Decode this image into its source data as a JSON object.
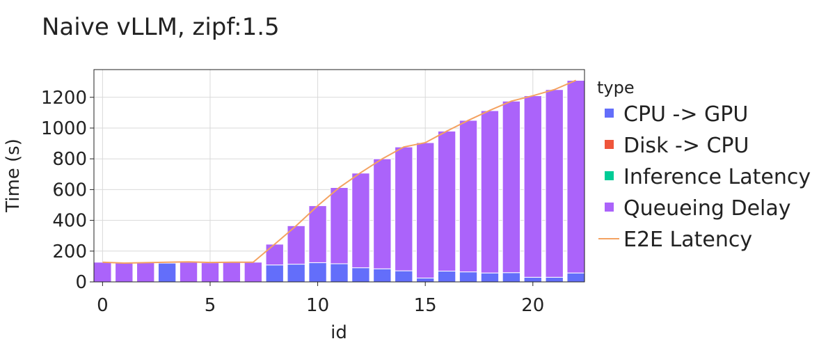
{
  "chart_data": {
    "type": "bar",
    "title": "Naive vLLM, zipf:1.5",
    "xlabel": "id",
    "ylabel": "Time (s)",
    "xlim": [
      -0.4,
      22.4
    ],
    "ylim": [
      0,
      1380
    ],
    "x_ticks": [
      0,
      5,
      10,
      15,
      20
    ],
    "y_ticks": [
      0,
      200,
      400,
      600,
      800,
      1000,
      1200
    ],
    "grid": true,
    "stacked": true,
    "legend": {
      "title": "type",
      "placement": "right"
    },
    "x": [
      0,
      1,
      2,
      3,
      4,
      5,
      6,
      7,
      8,
      9,
      10,
      11,
      12,
      13,
      14,
      15,
      16,
      17,
      18,
      19,
      20,
      21,
      22
    ],
    "series": [
      {
        "name": "CPU -> GPU",
        "color": "#636efa",
        "values": [
          0,
          0,
          0,
          122,
          0,
          0,
          0,
          0,
          110,
          115,
          125,
          118,
          92,
          85,
          72,
          25,
          70,
          65,
          58,
          60,
          30,
          30,
          58
        ]
      },
      {
        "name": "Disk -> CPU",
        "color": "#ef553b",
        "values": [
          0,
          0,
          0,
          0,
          0,
          0,
          0,
          0,
          0,
          0,
          0,
          0,
          0,
          0,
          0,
          0,
          0,
          0,
          0,
          0,
          0,
          0,
          0
        ]
      },
      {
        "name": "Inference Latency",
        "color": "#00cc96",
        "values": [
          0,
          0,
          0,
          0,
          0,
          0,
          0,
          0,
          0,
          0,
          0,
          0,
          0,
          0,
          0,
          0,
          0,
          0,
          0,
          0,
          0,
          0,
          0
        ]
      },
      {
        "name": "Queueing Delay",
        "color": "#ab63fa",
        "values": [
          128,
          122,
          125,
          3,
          128,
          124,
          127,
          128,
          135,
          250,
          370,
          495,
          615,
          715,
          805,
          880,
          910,
          985,
          1055,
          1115,
          1180,
          1220,
          1252
        ]
      }
    ],
    "line": {
      "name": "E2E Latency",
      "color": "#f4a261",
      "values": [
        128,
        122,
        125,
        128,
        130,
        126,
        128,
        128,
        245,
        365,
        495,
        613,
        710,
        800,
        877,
        905,
        980,
        1050,
        1115,
        1175,
        1210,
        1250,
        1310
      ]
    }
  }
}
